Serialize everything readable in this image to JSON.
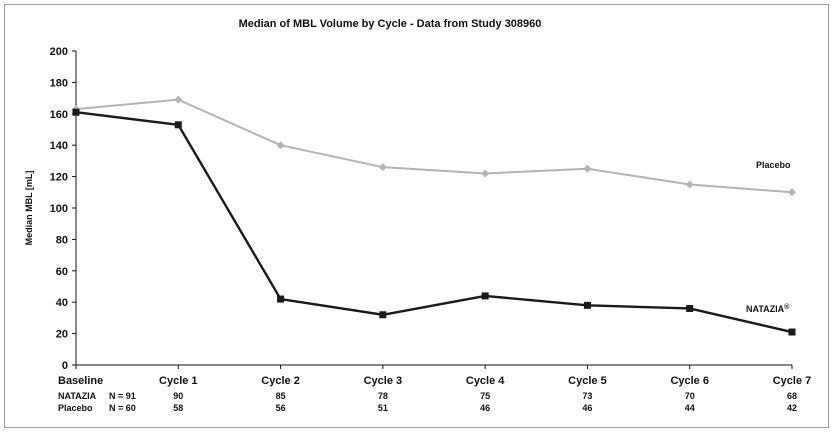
{
  "chart_data": {
    "type": "line",
    "title": "Median of MBL Volume by Cycle - Data from Study 308960",
    "ylabel": "Median MBL [mL]",
    "xlabel": "",
    "ylim": [
      0,
      200
    ],
    "yticks": [
      0,
      20,
      40,
      60,
      80,
      100,
      120,
      140,
      160,
      180,
      200
    ],
    "categories": [
      "Baseline",
      "Cycle 1",
      "Cycle 2",
      "Cycle 3",
      "Cycle 4",
      "Cycle 5",
      "Cycle 6",
      "Cycle 7"
    ],
    "grid": false,
    "series": [
      {
        "name": "Placebo",
        "color": "#b4b4b4",
        "marker": "diamond",
        "values": [
          163,
          169,
          140,
          126,
          122,
          125,
          115,
          110
        ]
      },
      {
        "name": "NATAZIA",
        "name_mark": "®",
        "color": "#1a1a1a",
        "marker": "square",
        "values": [
          161,
          153,
          42,
          32,
          44,
          38,
          36,
          21
        ]
      }
    ],
    "n_table": [
      {
        "label": "NATAZIA",
        "n_label": "N = 91",
        "values": [
          "90",
          "85",
          "78",
          "75",
          "73",
          "70",
          "68"
        ]
      },
      {
        "label": "Placebo",
        "n_label": "N = 60",
        "values": [
          "58",
          "56",
          "51",
          "46",
          "46",
          "44",
          "42"
        ]
      }
    ]
  }
}
